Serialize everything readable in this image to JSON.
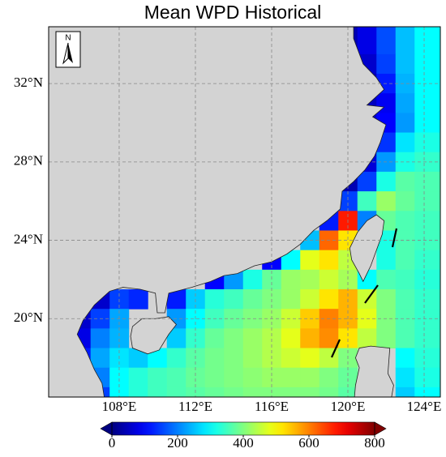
{
  "chart_data": {
    "type": "heatmap",
    "title": "Mean WPD Historical",
    "north_label": "N",
    "xlim": [
      104.3,
      124.85
    ],
    "ylim": [
      16,
      34.9
    ],
    "xticks": [
      {
        "value": 108,
        "label": "108°E"
      },
      {
        "value": 112,
        "label": "112°E"
      },
      {
        "value": 116,
        "label": "116°E"
      },
      {
        "value": 120,
        "label": "120°E"
      },
      {
        "value": 124,
        "label": "124°E"
      }
    ],
    "yticks": [
      {
        "value": 20,
        "label": "20°N"
      },
      {
        "value": 24,
        "label": "24°N"
      },
      {
        "value": 28,
        "label": "28°N"
      },
      {
        "value": 32,
        "label": "32°N"
      }
    ],
    "grid": true,
    "colormap": "jet",
    "clim": [
      0,
      800
    ],
    "cticks": [
      0,
      200,
      400,
      600,
      800
    ],
    "x": [
      105,
      106,
      107,
      108,
      109,
      110,
      111,
      112,
      113,
      114,
      115,
      116,
      117,
      118,
      119,
      120,
      121,
      122,
      123,
      124
    ],
    "y": [
      34,
      33,
      32,
      31,
      30,
      29,
      28,
      27,
      26,
      25,
      24,
      23,
      22,
      21,
      20,
      19,
      18,
      17,
      16
    ],
    "z": [
      [
        null,
        null,
        null,
        null,
        null,
        null,
        null,
        null,
        null,
        null,
        null,
        null,
        null,
        null,
        null,
        40,
        80,
        160,
        250,
        300
      ],
      [
        null,
        null,
        null,
        null,
        null,
        null,
        null,
        null,
        null,
        null,
        null,
        null,
        null,
        null,
        null,
        null,
        60,
        150,
        250,
        300
      ],
      [
        null,
        null,
        null,
        null,
        null,
        null,
        null,
        null,
        null,
        null,
        null,
        null,
        null,
        null,
        null,
        null,
        40,
        120,
        240,
        300
      ],
      [
        null,
        null,
        null,
        null,
        null,
        null,
        null,
        null,
        null,
        null,
        null,
        null,
        null,
        null,
        null,
        null,
        50,
        90,
        230,
        300
      ],
      [
        null,
        null,
        null,
        null,
        null,
        null,
        null,
        null,
        null,
        null,
        null,
        null,
        null,
        null,
        null,
        null,
        60,
        100,
        220,
        300
      ],
      [
        null,
        null,
        null,
        null,
        null,
        null,
        null,
        null,
        null,
        null,
        null,
        null,
        null,
        null,
        null,
        null,
        40,
        140,
        280,
        320
      ],
      [
        null,
        null,
        null,
        null,
        null,
        null,
        null,
        null,
        null,
        null,
        null,
        null,
        null,
        null,
        null,
        null,
        70,
        220,
        320,
        340
      ],
      [
        null,
        null,
        null,
        null,
        null,
        null,
        null,
        null,
        null,
        null,
        null,
        null,
        null,
        null,
        null,
        40,
        150,
        320,
        370,
        360
      ],
      [
        null,
        null,
        null,
        null,
        null,
        null,
        null,
        null,
        null,
        null,
        null,
        null,
        null,
        null,
        null,
        150,
        350,
        420,
        380,
        360
      ],
      [
        null,
        null,
        null,
        null,
        null,
        null,
        null,
        null,
        null,
        null,
        null,
        null,
        null,
        null,
        120,
        680,
        200,
        380,
        360,
        350
      ],
      [
        null,
        null,
        null,
        null,
        null,
        null,
        null,
        null,
        null,
        null,
        null,
        null,
        null,
        250,
        620,
        520,
        null,
        320,
        360,
        350
      ],
      [
        null,
        null,
        null,
        null,
        null,
        null,
        null,
        null,
        null,
        null,
        null,
        100,
        300,
        480,
        520,
        450,
        null,
        320,
        360,
        340
      ],
      [
        null,
        null,
        null,
        null,
        null,
        null,
        null,
        null,
        100,
        220,
        320,
        380,
        420,
        430,
        460,
        430,
        300,
        360,
        350,
        330
      ],
      [
        null,
        null,
        60,
        150,
        130,
        null,
        120,
        260,
        330,
        350,
        380,
        400,
        420,
        460,
        520,
        560,
        460,
        400,
        360,
        340
      ],
      [
        null,
        60,
        150,
        230,
        null,
        null,
        220,
        300,
        350,
        380,
        400,
        420,
        460,
        540,
        600,
        560,
        480,
        400,
        360,
        340
      ],
      [
        null,
        80,
        200,
        240,
        null,
        null,
        260,
        340,
        380,
        400,
        420,
        440,
        480,
        560,
        590,
        520,
        450,
        400,
        360,
        340
      ],
      [
        null,
        120,
        230,
        280,
        260,
        300,
        340,
        370,
        390,
        400,
        420,
        440,
        460,
        480,
        450,
        400,
        null,
        null,
        300,
        330
      ],
      [
        null,
        40,
        200,
        300,
        330,
        350,
        360,
        380,
        390,
        400,
        410,
        420,
        420,
        420,
        400,
        380,
        null,
        null,
        280,
        320
      ],
      [
        null,
        null,
        150,
        300,
        330,
        350,
        360,
        370,
        380,
        390,
        400,
        400,
        400,
        400,
        390,
        370,
        null,
        null,
        260,
        300
      ]
    ]
  }
}
